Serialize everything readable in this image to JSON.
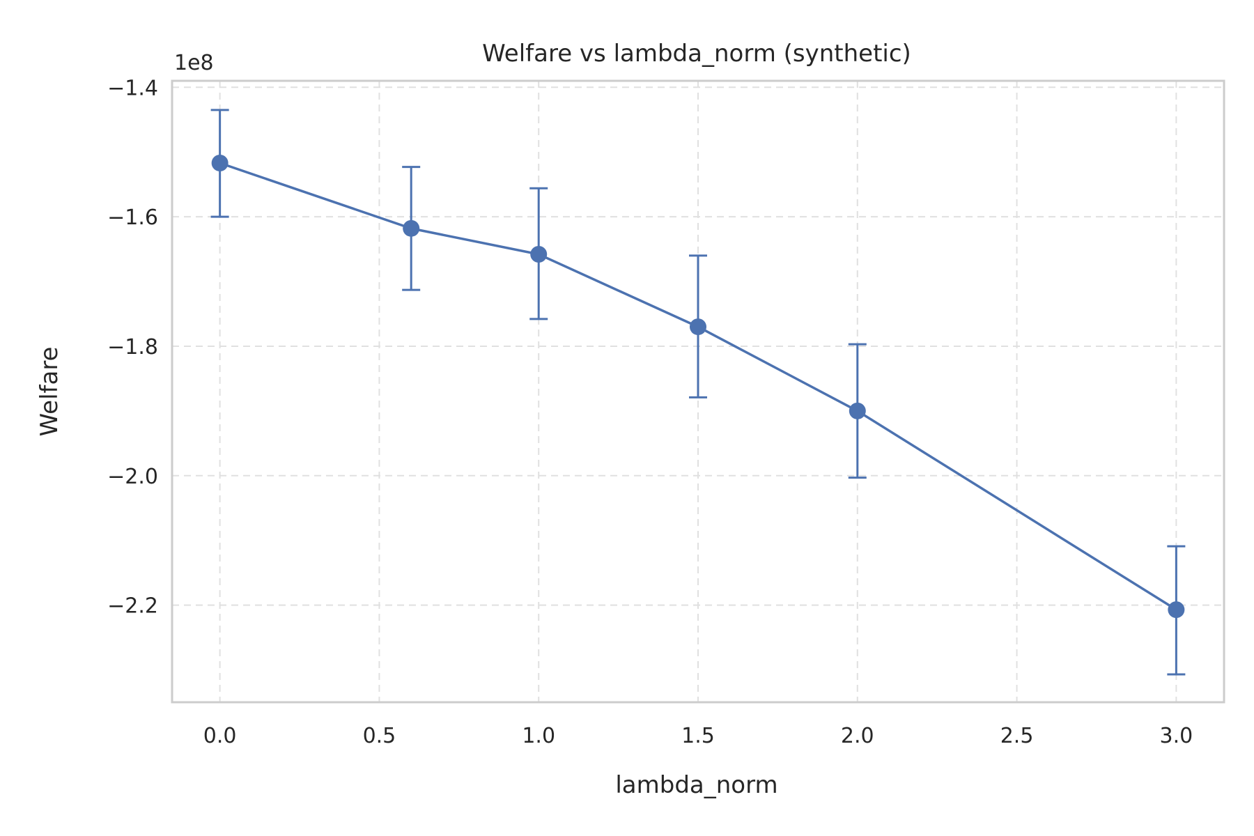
{
  "chart_data": {
    "type": "line",
    "title": "Welfare vs lambda_norm (synthetic)",
    "xlabel": "lambda_norm",
    "ylabel": "Welfare",
    "y_offset_label": "1e8",
    "y_scale_factor": 100000000,
    "xlim": [
      -0.15,
      3.15
    ],
    "ylim": [
      -2.35,
      -1.39
    ],
    "x_ticks": [
      0.0,
      0.5,
      1.0,
      1.5,
      2.0,
      2.5,
      3.0
    ],
    "x_tick_labels": [
      "0.0",
      "0.5",
      "1.0",
      "1.5",
      "2.0",
      "2.5",
      "3.0"
    ],
    "y_ticks": [
      -1.4,
      -1.6,
      -1.8,
      -2.0,
      -2.2
    ],
    "y_tick_labels": [
      "−1.4",
      "−1.6",
      "−1.8",
      "−2.0",
      "−2.2"
    ],
    "grid": true,
    "color": "#4c72b0",
    "series": [
      {
        "x": [
          0.0,
          0.6,
          1.0,
          1.5,
          2.0,
          3.0
        ],
        "y": [
          -1.517,
          -1.618,
          -1.658,
          -1.77,
          -1.9,
          -2.207
        ],
        "y_err_upper": [
          -1.435,
          -1.523,
          -1.556,
          -1.66,
          -1.797,
          -2.109
        ],
        "y_err_lower": [
          -1.6,
          -1.713,
          -1.758,
          -1.879,
          -2.003,
          -2.307
        ]
      }
    ]
  }
}
